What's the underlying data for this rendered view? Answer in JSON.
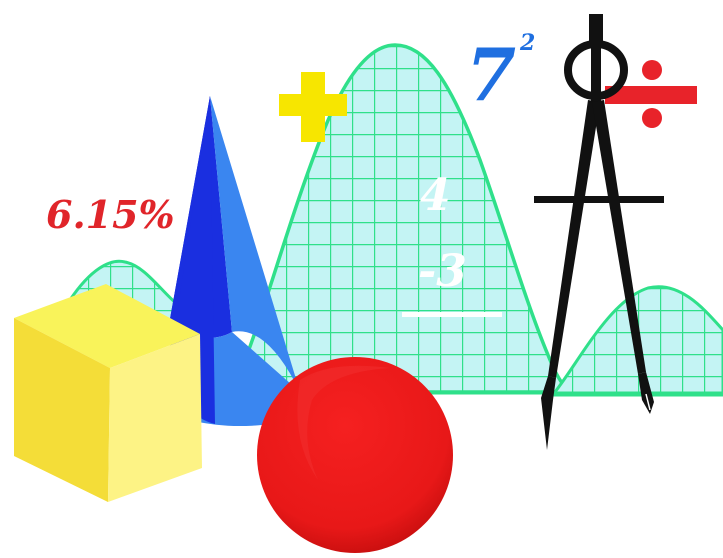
{
  "labels": {
    "percent": "6.15%",
    "power_base": "7",
    "power_exponent": "2",
    "number_top": "4",
    "number_bottom": "-3"
  },
  "colors": {
    "background": "#ffffff",
    "percent_text": "#e0252a",
    "power_text": "#1f6fe0",
    "plus_sign": "#f7e600",
    "divide_sign": "#e8232a",
    "grid_line": "#2fe08a",
    "grid_fill": "#c4f4f4",
    "cube_top": "#f9f35a",
    "cube_front": "#f4dd38",
    "cube_side": "#fdf385",
    "cone_dark": "#1a2fe0",
    "cone_light": "#3a86f0",
    "sphere": "#e81818",
    "sphere_shade": "#c40d0d",
    "compass": "#111111",
    "overlay_text": "#ffffff"
  },
  "icons": [
    "plus-sign-icon",
    "divide-sign-icon",
    "compass-icon",
    "cube-icon",
    "cone-icon",
    "sphere-icon",
    "bell-curve-grid-icon"
  ]
}
